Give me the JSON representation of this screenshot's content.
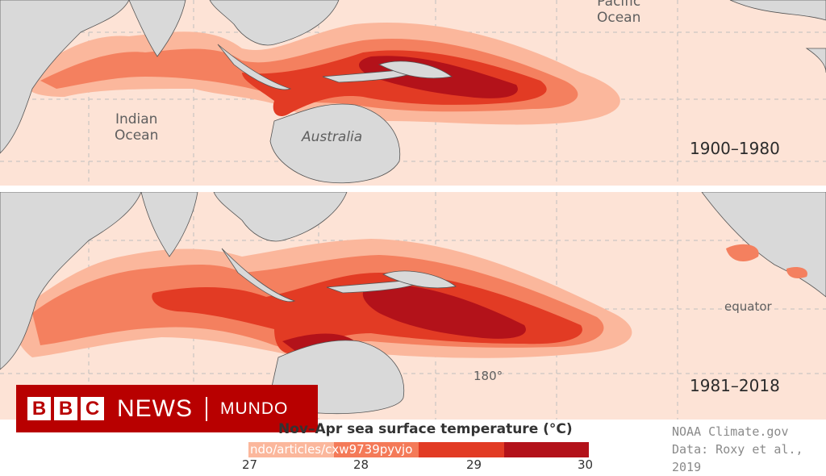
{
  "map": {
    "ocean_labels": {
      "pacific": "Pacific\nOcean",
      "indian": "Indian\nOcean",
      "australia": "Australia",
      "equator": "equator",
      "dateline": "180°"
    },
    "periods": [
      "1900–1980",
      "1981–2018"
    ]
  },
  "branding": {
    "logo_text": "NEWS",
    "logo_sub": "MUNDO",
    "bbc_letters": [
      "B",
      "B",
      "C"
    ],
    "brand_color": "#b80000"
  },
  "legend": {
    "title": "Nov–Apr sea surface temperature (°C)",
    "ticks": [
      "27",
      "28",
      "29",
      "30"
    ],
    "colors": [
      "#fbb79c",
      "#f47a58",
      "#e23b24",
      "#b3121a"
    ],
    "url": "ndo/articles/cxw9739pyvjo"
  },
  "credits": {
    "line1": "NOAA Climate.gov",
    "line2": "Data: Roxy et al., 2019"
  }
}
